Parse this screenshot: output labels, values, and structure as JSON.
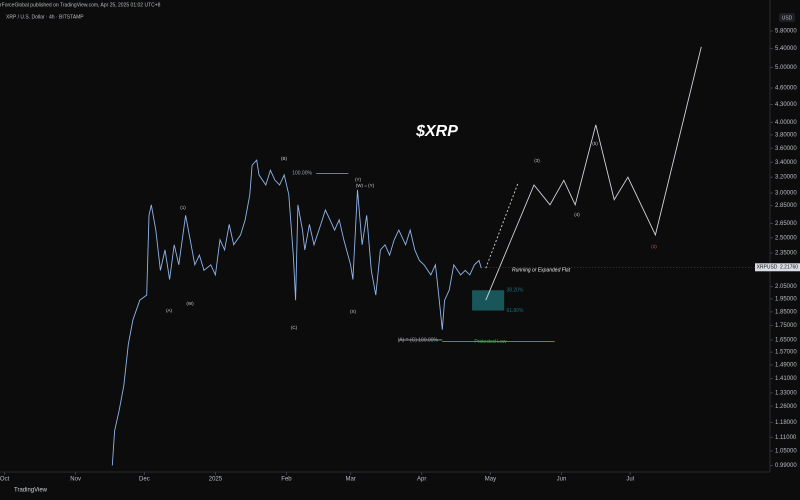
{
  "header": {
    "author_line": "rForceGlobal published on TradingView.com, Apr 25, 2025 01:02 UTC+8",
    "symbol_line": "XRP / U.S. Dollar · 4h · BITSTAMP",
    "currency": "USD",
    "footer": "TradingView"
  },
  "chart_data": {
    "type": "line",
    "title": "$XRP",
    "log_scale": true,
    "grid": false,
    "series": [
      {
        "name": "XRPUSD",
        "color": "#8fb4ea",
        "x": [
          47,
          48,
          50,
          52,
          54,
          56,
          59,
          62,
          63,
          64,
          66,
          68,
          70,
          72,
          74,
          76,
          79,
          81,
          83,
          85,
          87,
          90,
          92,
          94,
          96,
          98,
          100,
          103,
          105,
          107,
          108,
          110,
          111,
          114,
          116,
          118,
          120,
          122,
          124,
          126,
          127,
          128,
          130,
          131,
          133,
          135,
          138,
          140,
          142,
          144,
          146,
          148,
          151,
          152,
          154,
          156,
          158,
          160,
          162,
          164,
          166,
          168,
          170,
          172,
          175,
          177,
          179,
          181,
          183,
          186,
          188,
          189,
          191,
          192,
          194,
          196,
          199,
          201,
          203,
          205,
          207,
          208
        ],
        "values": [
          0.99,
          1.14,
          1.24,
          1.37,
          1.62,
          1.79,
          1.94,
          1.98,
          2.74,
          2.86,
          2.58,
          2.19,
          2.38,
          2.11,
          2.43,
          2.24,
          2.74,
          2.48,
          2.24,
          2.33,
          2.19,
          2.24,
          2.15,
          2.48,
          2.38,
          2.64,
          2.43,
          2.53,
          2.69,
          2.98,
          3.36,
          3.43,
          3.23,
          3.1,
          3.29,
          3.16,
          3.1,
          3.23,
          2.98,
          2.33,
          1.94,
          2.86,
          2.58,
          2.38,
          2.64,
          2.43,
          2.64,
          2.8,
          2.69,
          2.58,
          2.69,
          2.48,
          2.24,
          2.11,
          3.04,
          2.43,
          2.74,
          2.19,
          1.98,
          2.38,
          2.43,
          2.33,
          2.48,
          2.58,
          2.43,
          2.58,
          2.38,
          2.28,
          2.24,
          2.15,
          2.24,
          2.06,
          1.72,
          1.94,
          2.02,
          2.24,
          2.15,
          2.19,
          2.15,
          2.24,
          2.28,
          2.21
        ]
      }
    ],
    "projection": {
      "color": "#cfd3dc",
      "x": [
        210,
        231,
        238,
        244,
        249,
        258,
        266,
        272,
        284,
        304
      ],
      "values": [
        1.94,
        3.1,
        2.86,
        3.16,
        2.86,
        3.96,
        2.92,
        3.2,
        2.53,
        5.44
      ]
    },
    "projection_alt": {
      "x": [
        210,
        224
      ],
      "values": [
        2.21,
        3.12
      ]
    },
    "levels": [
      {
        "label": "Protected Low",
        "value": 1.64,
        "color": "#3fae5a"
      },
      {
        "label": "(A) = (C) 100.00%",
        "value": 1.65,
        "color": "#9aa0aa"
      },
      {
        "label": "100.00%",
        "value": 3.25,
        "color": "#9aa0aa"
      }
    ],
    "fib_zone": {
      "labels": [
        "38.20%",
        "61.80%"
      ],
      "values": [
        2.02,
        1.86
      ],
      "color": "#1d6f73"
    },
    "last_price": {
      "value": 2.2176,
      "label": "2.21760"
    },
    "annotations": [
      "Running or Expanded Flat",
      "(W) = (Y)",
      "(3)",
      "(4)",
      "(5)",
      "(2)",
      "(1)",
      "(B)",
      "(A)",
      "(C)",
      "(X)",
      "(Y)",
      "(W)"
    ],
    "xlim": [
      -2,
      334
    ],
    "xticks": [
      {
        "value": 0,
        "label": "Oct"
      },
      {
        "value": 31,
        "label": "Nov"
      },
      {
        "value": 61,
        "label": "Dec"
      },
      {
        "value": 92,
        "label": "2025"
      },
      {
        "value": 123,
        "label": "Feb"
      },
      {
        "value": 151,
        "label": "Mar"
      },
      {
        "value": 182,
        "label": "Apr"
      },
      {
        "value": 212,
        "label": "May"
      },
      {
        "value": 243,
        "label": "Jun"
      },
      {
        "value": 273,
        "label": "Jul"
      }
    ],
    "ylim": [
      0.972,
      6.58
    ],
    "yticks": [
      {
        "value": 5.8,
        "label": "5.80000"
      },
      {
        "value": 5.4,
        "label": "5.40000"
      },
      {
        "value": 5,
        "label": "5.00000"
      },
      {
        "value": 4.6,
        "label": "4.60000"
      },
      {
        "value": 4.3,
        "label": "4.30000"
      },
      {
        "value": 4,
        "label": "4.00000"
      },
      {
        "value": 3.8,
        "label": "3.80000"
      },
      {
        "value": 3.6,
        "label": "3.60000"
      },
      {
        "value": 3.4,
        "label": "3.40000"
      },
      {
        "value": 3.2,
        "label": "3.20000"
      },
      {
        "value": 3,
        "label": "3.00000"
      },
      {
        "value": 2.85,
        "label": "2.85000"
      },
      {
        "value": 2.65,
        "label": "2.65000"
      },
      {
        "value": 2.5,
        "label": "2.50000"
      },
      {
        "value": 2.35,
        "label": "2.35000"
      },
      {
        "value": 2.05,
        "label": "2.05000"
      },
      {
        "value": 1.95,
        "label": "1.95000"
      },
      {
        "value": 1.85,
        "label": "1.85000"
      },
      {
        "value": 1.75,
        "label": "1.75000"
      },
      {
        "value": 1.65,
        "label": "1.65000"
      },
      {
        "value": 1.57,
        "label": "1.57000"
      },
      {
        "value": 1.49,
        "label": "1.49000"
      },
      {
        "value": 1.41,
        "label": "1.41000"
      },
      {
        "value": 1.33,
        "label": "1.33000"
      },
      {
        "value": 1.26,
        "label": "1.26000"
      },
      {
        "value": 1.18,
        "label": "1.18000"
      },
      {
        "value": 1.11,
        "label": "1.11000"
      },
      {
        "value": 1.05,
        "label": "1.05000"
      },
      {
        "value": 0.99,
        "label": "0.99000"
      }
    ]
  }
}
